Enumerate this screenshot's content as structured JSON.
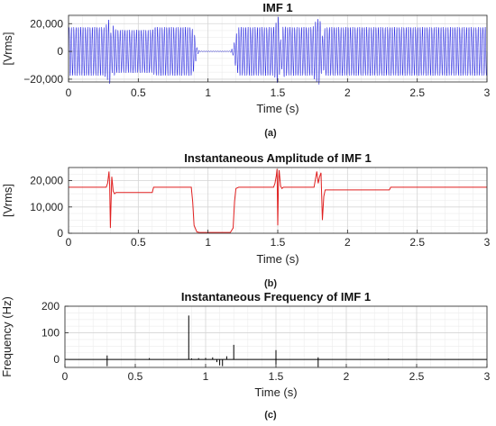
{
  "chart_data": [
    {
      "panel": "a",
      "type": "line",
      "title": "IMF 1",
      "xlabel": "Time (s)",
      "ylabel": "[Vrms]",
      "caption": "(a)",
      "xlim": [
        0,
        3
      ],
      "ylim": [
        -22000,
        26000
      ],
      "xticks": [
        0,
        0.5,
        1,
        1.5,
        2,
        2.5,
        3
      ],
      "xtick_labels": [
        "0",
        "0.5",
        "1",
        "1.5",
        "2",
        "2.5",
        "3"
      ],
      "yticks": [
        20000,
        0,
        -20000
      ],
      "ytick_labels": [
        "20,000",
        "0",
        "−20,000"
      ],
      "grid": true,
      "color": "#2020e0",
      "series": [
        {
          "signal": "oscillation",
          "envelope": {
            "t": [
              0,
              0.258,
              0.28,
              0.295,
              0.305,
              0.32,
              0.34,
              0.36,
              0.6,
              0.62,
              0.88,
              0.9,
              0.92,
              0.94,
              1.16,
              1.18,
              1.2,
              1.22,
              1.47,
              1.49,
              1.505,
              1.52,
              1.54,
              1.56,
              1.75,
              1.77,
              1.8,
              1.82,
              1.84,
              2.3,
              2.32,
              3.0
            ],
            "amp": [
              17500,
              17500,
              21000,
              24500,
              12000,
              19000,
              15500,
              15500,
              15500,
              17500,
              17500,
              14000,
              3000,
              400,
              400,
              3000,
              12000,
              17500,
              17500,
              21000,
              25500,
              8000,
              19000,
              17500,
              17500,
              21500,
              24500,
              11000,
              17500,
              17500,
              17500,
              17500
            ]
          }
        }
      ]
    },
    {
      "panel": "b",
      "type": "line",
      "title": "Instantaneous Amplitude of IMF 1",
      "xlabel": "Time (s)",
      "ylabel": "[Vrms]",
      "caption": "(b)",
      "xlim": [
        0,
        3
      ],
      "ylim": [
        0,
        25000
      ],
      "xticks": [
        0,
        0.5,
        1,
        1.5,
        2,
        2.5,
        3
      ],
      "xtick_labels": [
        "0",
        "0.5",
        "1",
        "1.5",
        "2",
        "2.5",
        "3"
      ],
      "yticks": [
        0,
        10000,
        20000
      ],
      "ytick_labels": [
        "0",
        "10,000",
        "20,000"
      ],
      "grid": true,
      "color": "#e02020",
      "series": [
        {
          "x": [
            0,
            0.27,
            0.28,
            0.29,
            0.295,
            0.3,
            0.305,
            0.31,
            0.315,
            0.32,
            0.33,
            0.34,
            0.35,
            0.6,
            0.61,
            0.88,
            0.89,
            0.9,
            0.92,
            0.94,
            1.16,
            1.18,
            1.19,
            1.2,
            1.22,
            1.47,
            1.48,
            1.49,
            1.495,
            1.5,
            1.505,
            1.51,
            1.52,
            1.53,
            1.54,
            1.76,
            1.77,
            1.78,
            1.79,
            1.8,
            1.81,
            1.82,
            1.83,
            1.84,
            1.86,
            2.3,
            2.31,
            3.0
          ],
          "y": [
            17500,
            17500,
            19000,
            23500,
            18000,
            2000,
            12000,
            21500,
            19000,
            16000,
            15000,
            15500,
            15500,
            15500,
            17500,
            17500,
            12000,
            3000,
            500,
            300,
            300,
            2000,
            12000,
            17000,
            17500,
            17500,
            19000,
            22000,
            24500,
            3000,
            19000,
            24000,
            18000,
            17000,
            17500,
            17500,
            20500,
            23500,
            19000,
            21500,
            23000,
            5000,
            14000,
            16500,
            16500,
            16500,
            17500,
            17500
          ]
        }
      ]
    },
    {
      "panel": "c",
      "type": "line",
      "title": "Instantaneous Frequency of IMF 1",
      "xlabel": "Time (s)",
      "ylabel": "Frequency (Hz)",
      "caption": "(c)",
      "xlim": [
        0,
        3
      ],
      "ylim": [
        -30,
        200
      ],
      "xticks": [
        0,
        0.5,
        1,
        1.5,
        2,
        2.5,
        3
      ],
      "xtick_labels": [
        "0",
        "0.5",
        "1",
        "1.5",
        "2",
        "2.5",
        "3"
      ],
      "yticks": [
        0,
        100,
        200
      ],
      "ytick_labels": [
        "0",
        "100",
        "200"
      ],
      "grid": true,
      "color": "#000000",
      "series": [
        {
          "baseline": 0,
          "spikes": [
            {
              "t": 0.3,
              "v": 15
            },
            {
              "t": 0.3,
              "v": -25
            },
            {
              "t": 0.6,
              "v": 5
            },
            {
              "t": 0.88,
              "v": 165
            },
            {
              "t": 0.9,
              "v": 4
            },
            {
              "t": 0.95,
              "v": 5
            },
            {
              "t": 1.0,
              "v": 6
            },
            {
              "t": 1.05,
              "v": 8
            },
            {
              "t": 1.08,
              "v": -10
            },
            {
              "t": 1.1,
              "v": -22
            },
            {
              "t": 1.12,
              "v": -25
            },
            {
              "t": 1.15,
              "v": 12
            },
            {
              "t": 1.2,
              "v": 55
            },
            {
              "t": 1.5,
              "v": 35
            },
            {
              "t": 1.5,
              "v": -20
            },
            {
              "t": 1.8,
              "v": -28
            },
            {
              "t": 1.8,
              "v": 8
            },
            {
              "t": 2.3,
              "v": 3
            }
          ]
        }
      ]
    }
  ]
}
